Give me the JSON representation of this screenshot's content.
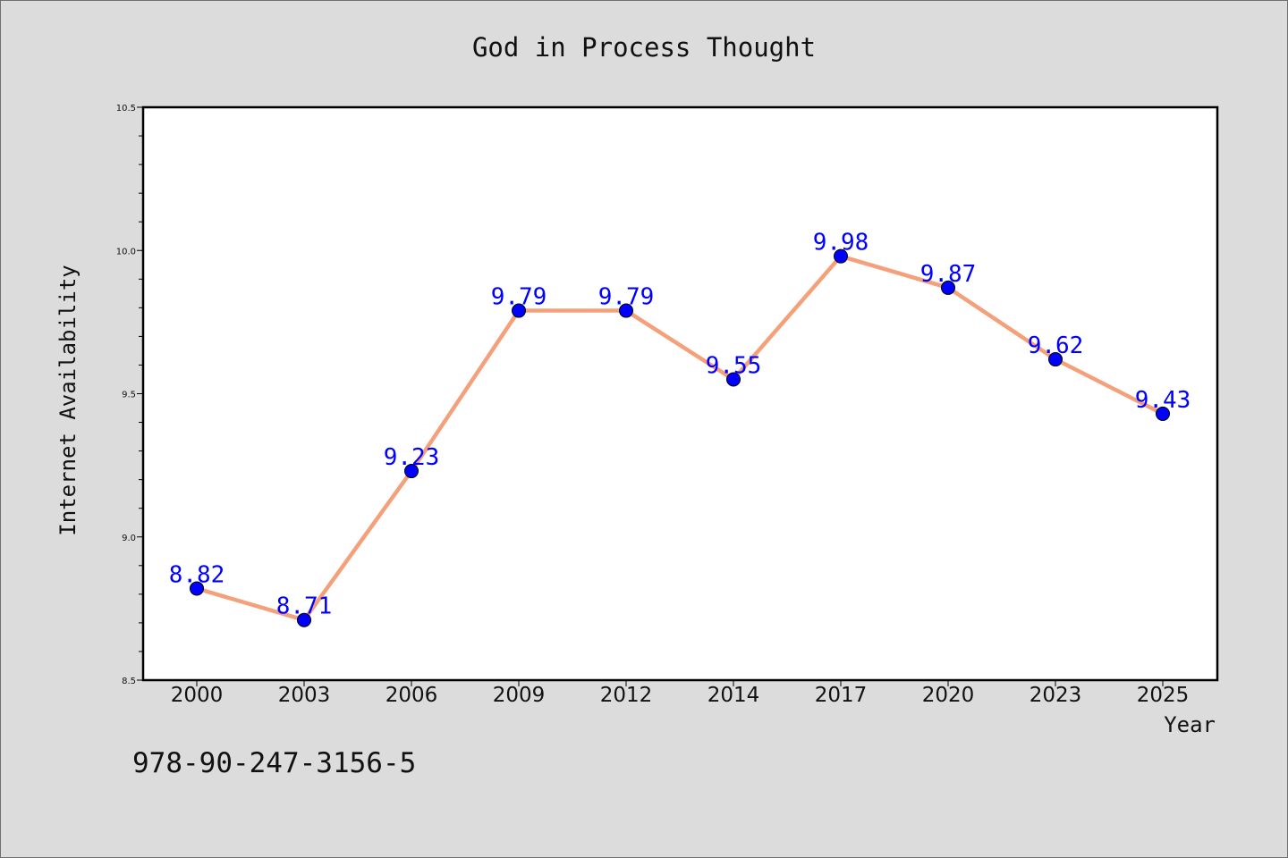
{
  "chart_data": {
    "type": "line",
    "title": "God in Process Thought",
    "xlabel": "Year",
    "ylabel": "Internet Availability",
    "categories": [
      "2000",
      "2003",
      "2006",
      "2009",
      "2012",
      "2014",
      "2017",
      "2020",
      "2023",
      "2025"
    ],
    "series": [
      {
        "values": [
          8.82,
          8.71,
          9.23,
          9.79,
          9.79,
          9.55,
          9.98,
          9.87,
          9.62,
          9.43
        ],
        "line_color": "#f4a07a",
        "marker_color": "#0000ff"
      }
    ],
    "data_labels": [
      "8.82",
      "8.71",
      "9.23",
      "9.79",
      "9.79",
      "9.55",
      "9.98",
      "9.87",
      "9.62",
      "9.43"
    ],
    "ylim": [
      8.5,
      10.5
    ],
    "yticks": [
      "8.5",
      "9.0",
      "9.5",
      "10.0",
      "10.5"
    ],
    "grid": false,
    "legend": "none"
  },
  "footer": {
    "isbn": "978-90-247-3156-5"
  },
  "colors": {
    "background": "#dcdcdc",
    "plot_background": "#ffffff",
    "line": "#f4a07a",
    "marker": "#0000ff",
    "data_label": "#0000ff"
  }
}
